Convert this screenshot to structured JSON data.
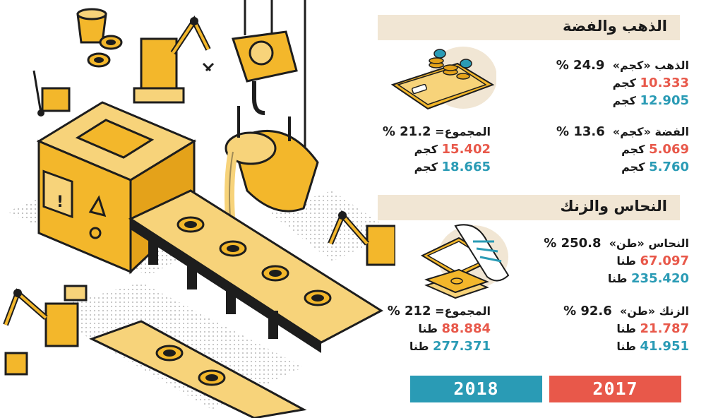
{
  "sections": {
    "gold_silver": {
      "title": "الذهب والفضة",
      "gold": {
        "label": "الذهب «كجم»",
        "percent": "24.9 %",
        "val2017": "10.333",
        "val2018": "12.905",
        "unit": "كجم"
      },
      "silver": {
        "label": "الفضة «كجم»",
        "percent": "13.6 %",
        "val2017": "5.069",
        "val2018": "5.760",
        "unit": "كجم"
      },
      "total": {
        "label": "المجموع=",
        "percent": "21.2 %",
        "val2017": "15.402",
        "val2018": "18.665",
        "unit": "كجم"
      }
    },
    "copper_zinc": {
      "title": "النحاس والزنك",
      "copper": {
        "label": "النحاس «طن»",
        "percent": "250.8 %",
        "val2017": "67.097",
        "val2018": "235.420",
        "unit": "طنا"
      },
      "zinc": {
        "label": "الزنك «طن»",
        "percent": "92.6 %",
        "val2017": "21.787",
        "val2018": "41.951",
        "unit": "طنا"
      },
      "total": {
        "label": "المجموع=",
        "percent": "212 %",
        "val2017": "88.884",
        "val2018": "277.371",
        "unit": "طنا"
      }
    }
  },
  "legend": {
    "year2017": "2017",
    "year2018": "2018",
    "color2017": "#e8584a",
    "color2018": "#2a9bb5"
  },
  "illustration": {
    "icons": [
      "factory-machine-icon",
      "conveyor-belt-icon",
      "robot-arm-icon",
      "crane-hook-icon",
      "crucible-icon",
      "phone-coins-icon",
      "cash-receipt-icon"
    ]
  }
}
